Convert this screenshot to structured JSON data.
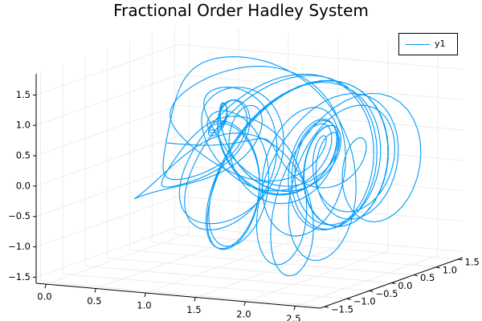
{
  "chart_data": {
    "type": "line",
    "title": "Fractional Order Hadley System",
    "legend": {
      "placement": "top-right",
      "entries": [
        "y1"
      ]
    },
    "grid": true,
    "series_color": "#009af9",
    "axes": {
      "x": {
        "range": [
          0,
          2.75
        ],
        "ticks": [
          0.0,
          0.5,
          1.0,
          1.5,
          2.0,
          2.5
        ],
        "tick_labels": [
          "0.0",
          "0.5",
          "1.0",
          "1.5",
          "2.0",
          "2.5"
        ]
      },
      "y": {
        "range": [
          -1.6,
          1.6
        ],
        "ticks": [
          -1.5,
          -1.0,
          -0.5,
          0.0,
          0.5,
          1.0,
          1.5
        ],
        "tick_labels": [
          "−1.5",
          "−1.0",
          "−0.5",
          "0.0",
          "0.5",
          "1.0",
          "1.5"
        ]
      },
      "z": {
        "range": [
          -1.6,
          1.85
        ],
        "ticks": [
          -1.5,
          -1.0,
          -0.5,
          0.0,
          0.5,
          1.0,
          1.5
        ],
        "tick_labels": [
          "−1.5",
          "−1.0",
          "−0.5",
          "0.0",
          "0.5",
          "1.0",
          "1.5"
        ]
      }
    },
    "series": [
      {
        "name": "y1",
        "description": "3D trajectory of the fractional order Hadley system, starting near (0.0, 0.0, 0.3) and spiraling onto a toroidal attractor"
      }
    ]
  }
}
